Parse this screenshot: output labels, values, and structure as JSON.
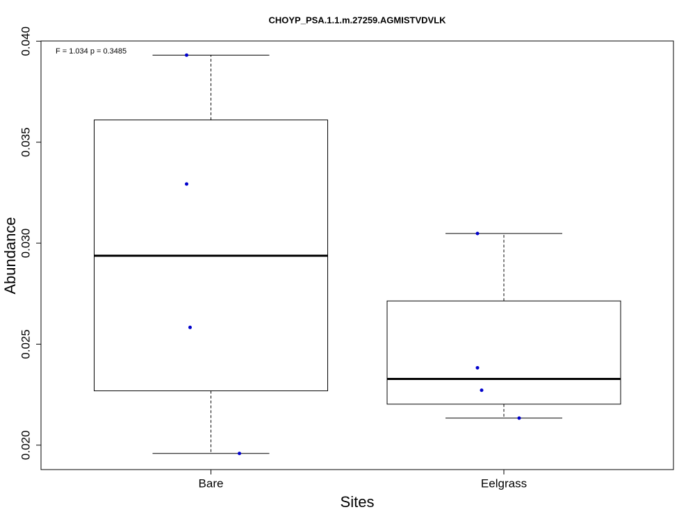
{
  "chart_data": {
    "type": "boxplot",
    "title": "CHOYP_PSA.1.1.m.27259.AGMISTVDVLK",
    "annotation": "F = 1.034 p = 0.3485",
    "xlabel": "Sites",
    "ylabel": "Abundance",
    "categories": [
      "Bare",
      "Eelgrass"
    ],
    "boxes": [
      {
        "min": 0.01959,
        "q1": 0.02269,
        "median": 0.02938,
        "q3": 0.0361,
        "max": 0.03931
      },
      {
        "min": 0.02134,
        "q1": 0.02203,
        "median": 0.02328,
        "q3": 0.02714,
        "max": 0.03048
      }
    ],
    "points": [
      [
        0.03931,
        0.03293,
        0.02583,
        0.01959
      ],
      [
        0.03048,
        0.02383,
        0.02272,
        0.02134
      ]
    ],
    "box_color": "#000000",
    "point_color": "#0000cc",
    "ylim": [
      0.01879,
      0.04001
    ],
    "yticks": [
      {
        "value": 0.02,
        "label": "0.020"
      },
      {
        "value": 0.025,
        "label": "0.025"
      },
      {
        "value": 0.03,
        "label": "0.030"
      },
      {
        "value": 0.035,
        "label": "0.035"
      },
      {
        "value": 0.04,
        "label": "0.040"
      }
    ]
  }
}
